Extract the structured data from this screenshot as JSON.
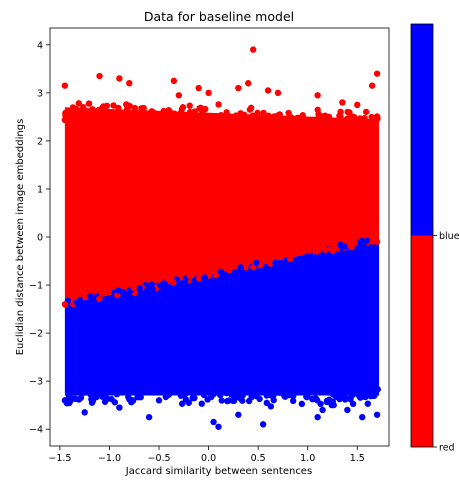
{
  "chart_data": {
    "type": "scatter",
    "title": "Data for baseline model",
    "xlabel": "Jaccard similarity between sentences",
    "ylabel": "Euclidian distance between image embeddings",
    "xlim": [
      -1.6,
      1.82
    ],
    "ylim": [
      -4.35,
      4.35
    ],
    "x_ticks": [
      -1.5,
      -1.0,
      -0.5,
      0.0,
      0.5,
      1.0,
      1.5
    ],
    "x_tick_labels": [
      "−1.5",
      "−1.0",
      "−0.5",
      "0.0",
      "0.5",
      "1.0",
      "1.5"
    ],
    "y_ticks": [
      -4,
      -3,
      -2,
      -1,
      0,
      1,
      2,
      3,
      4
    ],
    "y_tick_labels": [
      "−4",
      "−3",
      "−2",
      "−1",
      "0",
      "1",
      "2",
      "3",
      "4"
    ],
    "grid": false,
    "boundary": {
      "x": [
        -1.45,
        1.72
      ],
      "y": [
        -1.4,
        -0.05
      ]
    },
    "series": [
      {
        "name": "red",
        "color": "#ff0000",
        "band": {
          "x_range": [
            -1.45,
            1.72
          ],
          "upper_y": [
            2.7,
            2.45
          ],
          "outliers": [
            [
              -1.45,
              3.15
            ],
            [
              -1.1,
              3.35
            ],
            [
              -0.9,
              3.3
            ],
            [
              -0.8,
              3.2
            ],
            [
              -0.35,
              3.25
            ],
            [
              -0.3,
              2.95
            ],
            [
              -0.1,
              3.1
            ],
            [
              0.0,
              3.0
            ],
            [
              0.3,
              3.1
            ],
            [
              0.4,
              3.2
            ],
            [
              0.45,
              3.9
            ],
            [
              0.6,
              3.05
            ],
            [
              0.7,
              3.0
            ],
            [
              1.1,
              2.95
            ],
            [
              1.35,
              2.8
            ],
            [
              1.5,
              2.75
            ],
            [
              1.65,
              3.15
            ],
            [
              1.7,
              3.4
            ]
          ]
        }
      },
      {
        "name": "blue",
        "color": "#0000ff",
        "band": {
          "x_range": [
            -1.45,
            1.72
          ],
          "lower_y": [
            -3.3,
            -3.3
          ],
          "outliers": [
            [
              -1.45,
              -3.4
            ],
            [
              -1.25,
              -3.65
            ],
            [
              -0.9,
              -3.55
            ],
            [
              -0.6,
              -3.75
            ],
            [
              -0.5,
              -3.4
            ],
            [
              -0.2,
              -3.45
            ],
            [
              0.05,
              -3.85
            ],
            [
              0.1,
              -3.95
            ],
            [
              0.3,
              -3.7
            ],
            [
              0.55,
              -3.9
            ],
            [
              1.1,
              -3.75
            ],
            [
              1.15,
              -3.6
            ],
            [
              1.4,
              -3.6
            ],
            [
              1.55,
              -3.75
            ],
            [
              1.7,
              -3.7
            ]
          ]
        }
      }
    ],
    "colorbar": {
      "colors": [
        "#ff0000",
        "#0000ff"
      ],
      "tick_labels": [
        "red",
        "blue"
      ]
    }
  }
}
